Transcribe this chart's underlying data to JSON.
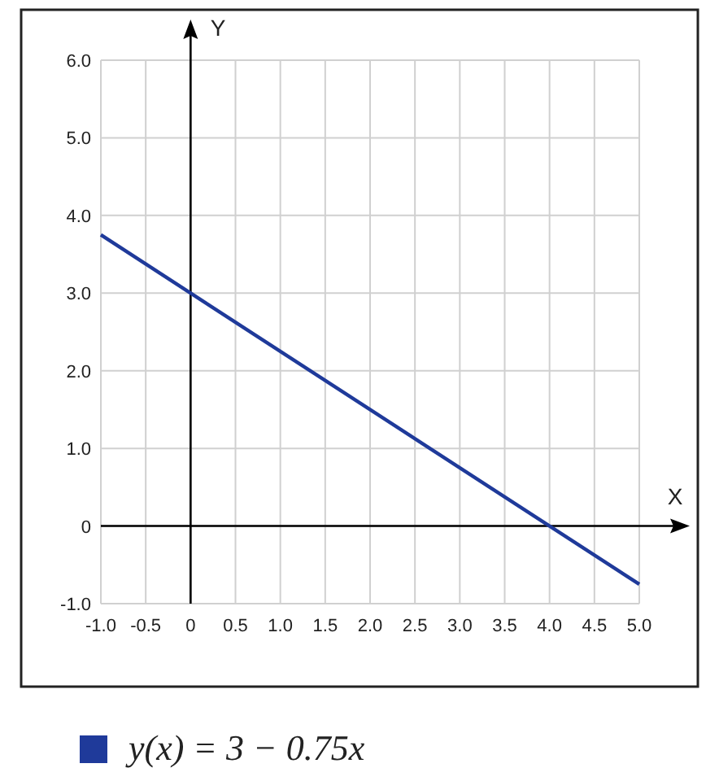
{
  "chart_data": {
    "type": "line",
    "xlabel": "X",
    "ylabel": "Y",
    "x": [
      -1.0,
      5.0
    ],
    "series": [
      {
        "name": "y(x) = 3 − 0.75x",
        "color": "#1f3a9a",
        "values": [
          3.75,
          -0.75
        ]
      }
    ],
    "xlim": [
      -1.0,
      5.0
    ],
    "ylim": [
      -1.0,
      6.0
    ],
    "xticks": [
      {
        "value": -1,
        "label": "-1.0"
      },
      {
        "value": -0.5,
        "label": "-0.5"
      },
      0,
      0.5,
      {
        "value": 1,
        "label": "1.0"
      },
      1.5,
      {
        "value": 2,
        "label": "2.0"
      },
      2.5,
      {
        "value": 3,
        "label": "3.0"
      },
      3.5,
      {
        "value": 4,
        "label": "4.0"
      },
      4.5,
      {
        "value": 5,
        "label": "5.0"
      }
    ],
    "yticks": [
      {
        "value": -1,
        "label": "-1.0"
      },
      0,
      {
        "value": 1,
        "label": "1.0"
      },
      {
        "value": 2,
        "label": "2.0"
      },
      {
        "value": 3,
        "label": "3.0"
      },
      {
        "value": 4,
        "label": "4.0"
      },
      {
        "value": 5,
        "label": "5.0"
      },
      {
        "value": 6,
        "label": "6.0"
      }
    ],
    "grid": true,
    "legend": "bottom",
    "marker": "none",
    "line_style": "solid"
  }
}
